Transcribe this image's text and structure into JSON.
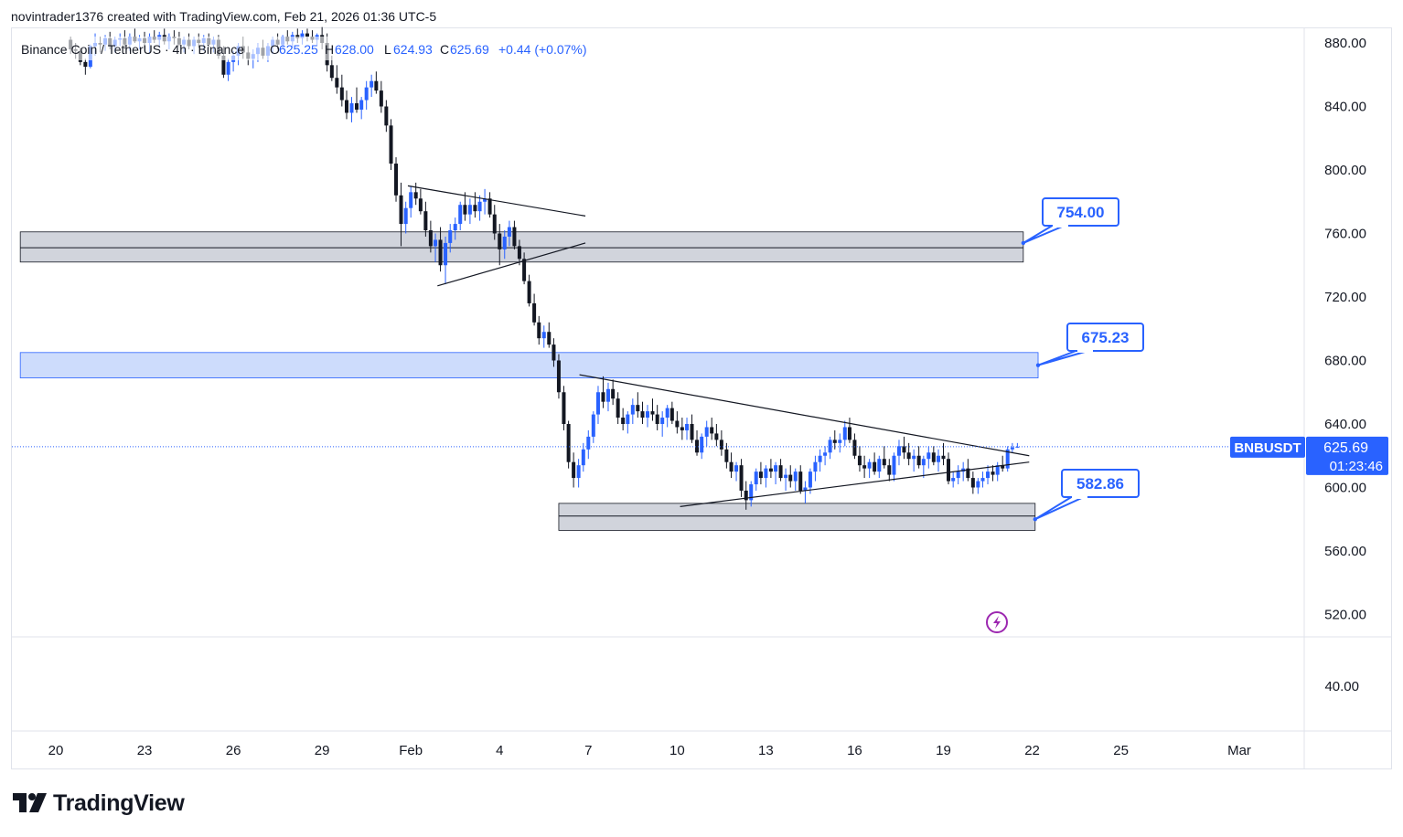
{
  "header": {
    "text": "novintrader1376 created with TradingView.com, Feb 21, 2026 01:36 UTC-5"
  },
  "legend": {
    "symbol": "Binance Coin / TetherUS · 4h · Binance",
    "o_label": "O",
    "o_value": "625.25",
    "h_label": "H",
    "h_value": "628.00",
    "l_label": "L",
    "l_value": "624.93",
    "c_label": "C",
    "c_value": "625.69",
    "change": "+0.44 (+0.07%)",
    "up_color": "#2962ff"
  },
  "footer": {
    "brand": "TradingView"
  },
  "chart_data": {
    "type": "candlestick",
    "symbol": "BNBUSDT",
    "interval": "4h",
    "price_axis": {
      "ticks": [
        "880.00",
        "840.00",
        "800.00",
        "760.00",
        "720.00",
        "680.00",
        "640.00",
        "600.00",
        "560.00",
        "520.00"
      ],
      "ylim": [
        505,
        895
      ]
    },
    "sub_axis": {
      "ticks": [
        "40.00"
      ]
    },
    "time_axis": {
      "ticks": [
        "20",
        "23",
        "26",
        "29",
        "Feb",
        "4",
        "7",
        "10",
        "13",
        "16",
        "19",
        "22",
        "25",
        "Mar"
      ],
      "tick_days": [
        0,
        3,
        6,
        9,
        12,
        15,
        18,
        21,
        24,
        27,
        30,
        33,
        36,
        40
      ]
    },
    "last_price": {
      "symbol_label": "BNBUSDT",
      "price": "625.69",
      "countdown": "01:23:46",
      "color": "#2962ff"
    },
    "zones": [
      {
        "name": "supply-zone-gray-upper",
        "top": 761,
        "bottom": 742,
        "mid": 751,
        "start_day": -1.2,
        "end_day": 32.7,
        "color": "#d1d4dc"
      },
      {
        "name": "supply-zone-blue",
        "top": 685,
        "bottom": 669,
        "start_day": -1.2,
        "end_day": 33.2,
        "color": "#cddcfc"
      },
      {
        "name": "demand-zone-gray-lower",
        "top": 590,
        "bottom": 573,
        "mid": 582,
        "start_day": 17.0,
        "end_day": 33.1,
        "color": "#d1d4dc"
      }
    ],
    "trendlines": [
      {
        "name": "flag-upper-line",
        "from": [
          11.9,
          790
        ],
        "to": [
          17.9,
          771
        ]
      },
      {
        "name": "flag-lower-line",
        "from": [
          12.9,
          727
        ],
        "to": [
          17.9,
          754
        ]
      },
      {
        "name": "triangle-upper-line",
        "from": [
          17.7,
          671
        ],
        "to": [
          32.9,
          620
        ]
      },
      {
        "name": "triangle-lower-line",
        "from": [
          21.1,
          588
        ],
        "to": [
          32.9,
          616
        ]
      }
    ],
    "callouts": [
      {
        "label": "754.00",
        "value": 754.0,
        "anchor": [
          32.7,
          754
        ]
      },
      {
        "label": "675.23",
        "value": 675.23,
        "anchor": [
          33.2,
          677
        ]
      },
      {
        "label": "582.86",
        "value": 582.86,
        "anchor": [
          33.1,
          580
        ]
      }
    ],
    "candles": [
      [
        0.5,
        882,
        884,
        873,
        876
      ],
      [
        0.67,
        876,
        880,
        870,
        875
      ],
      [
        0.83,
        875,
        877,
        866,
        868
      ],
      [
        1.0,
        868,
        870,
        860,
        865
      ],
      [
        1.17,
        865,
        879,
        864,
        878
      ],
      [
        1.33,
        878,
        886,
        872,
        880
      ],
      [
        1.5,
        880,
        884,
        874,
        879
      ],
      [
        1.67,
        879,
        885,
        875,
        883
      ],
      [
        1.83,
        883,
        887,
        876,
        878
      ],
      [
        2.0,
        878,
        884,
        874,
        882
      ],
      [
        2.17,
        882,
        886,
        878,
        883
      ],
      [
        2.33,
        883,
        888,
        876,
        879
      ],
      [
        2.5,
        879,
        886,
        875,
        884
      ],
      [
        2.67,
        884,
        889,
        880,
        881
      ],
      [
        2.83,
        881,
        885,
        876,
        883
      ],
      [
        3.0,
        883,
        887,
        877,
        880
      ],
      [
        3.17,
        880,
        886,
        874,
        884
      ],
      [
        3.33,
        884,
        888,
        880,
        882
      ],
      [
        3.5,
        882,
        887,
        877,
        885
      ],
      [
        3.67,
        885,
        889,
        879,
        881
      ],
      [
        3.83,
        881,
        886,
        876,
        884
      ],
      [
        4.0,
        884,
        888,
        879,
        883
      ],
      [
        4.17,
        883,
        887,
        878,
        879
      ],
      [
        4.33,
        879,
        884,
        874,
        882
      ],
      [
        4.5,
        882,
        886,
        876,
        878
      ],
      [
        4.67,
        878,
        884,
        873,
        882
      ],
      [
        4.83,
        882,
        886,
        877,
        880
      ],
      [
        5.0,
        880,
        885,
        875,
        883
      ],
      [
        5.17,
        883,
        886,
        877,
        879
      ],
      [
        5.33,
        879,
        884,
        874,
        882
      ],
      [
        5.5,
        882,
        885,
        870,
        872
      ],
      [
        5.67,
        872,
        878,
        858,
        860
      ],
      [
        5.83,
        860,
        870,
        856,
        868
      ],
      [
        6.0,
        868,
        875,
        862,
        872
      ],
      [
        6.17,
        872,
        880,
        866,
        878
      ],
      [
        6.33,
        878,
        884,
        870,
        874
      ],
      [
        6.5,
        874,
        878,
        866,
        870
      ],
      [
        6.67,
        870,
        876,
        864,
        873
      ],
      [
        6.83,
        873,
        880,
        868,
        877
      ],
      [
        7.0,
        877,
        882,
        870,
        872
      ],
      [
        7.17,
        872,
        880,
        868,
        878
      ],
      [
        7.33,
        878,
        884,
        873,
        882
      ],
      [
        7.5,
        882,
        886,
        876,
        879
      ],
      [
        7.67,
        879,
        885,
        876,
        884
      ],
      [
        7.83,
        884,
        888,
        879,
        881
      ],
      [
        8.0,
        881,
        887,
        877,
        885
      ],
      [
        8.17,
        885,
        889,
        880,
        883
      ],
      [
        8.33,
        883,
        888,
        879,
        886
      ],
      [
        8.5,
        886,
        889,
        881,
        884
      ],
      [
        8.67,
        884,
        888,
        880,
        882
      ],
      [
        8.83,
        882,
        886,
        878,
        885
      ],
      [
        9.0,
        885,
        890,
        876,
        880
      ],
      [
        9.17,
        880,
        886,
        862,
        866
      ],
      [
        9.33,
        866,
        872,
        856,
        858
      ],
      [
        9.5,
        858,
        866,
        848,
        852
      ],
      [
        9.67,
        852,
        860,
        840,
        844
      ],
      [
        9.83,
        844,
        850,
        832,
        836
      ],
      [
        10.0,
        836,
        846,
        830,
        842
      ],
      [
        10.17,
        842,
        852,
        836,
        838
      ],
      [
        10.33,
        838,
        846,
        832,
        844
      ],
      [
        10.5,
        844,
        856,
        838,
        852
      ],
      [
        10.67,
        852,
        860,
        846,
        856
      ],
      [
        10.83,
        856,
        862,
        848,
        850
      ],
      [
        11.0,
        850,
        856,
        836,
        840
      ],
      [
        11.17,
        840,
        844,
        824,
        828
      ],
      [
        11.33,
        828,
        832,
        800,
        804
      ],
      [
        11.5,
        804,
        808,
        780,
        784
      ],
      [
        11.67,
        784,
        792,
        752,
        766
      ],
      [
        11.83,
        766,
        780,
        760,
        776
      ],
      [
        12.0,
        776,
        790,
        770,
        786
      ],
      [
        12.17,
        786,
        792,
        778,
        782
      ],
      [
        12.33,
        782,
        788,
        772,
        774
      ],
      [
        12.5,
        774,
        780,
        758,
        762
      ],
      [
        12.67,
        762,
        768,
        748,
        752
      ],
      [
        12.83,
        752,
        760,
        742,
        756
      ],
      [
        13.0,
        756,
        764,
        736,
        740
      ],
      [
        13.17,
        740,
        758,
        728,
        754
      ],
      [
        13.33,
        754,
        766,
        748,
        762
      ],
      [
        13.5,
        762,
        770,
        756,
        766
      ],
      [
        13.67,
        766,
        780,
        762,
        778
      ],
      [
        13.83,
        778,
        786,
        768,
        772
      ],
      [
        14.0,
        772,
        782,
        766,
        778
      ],
      [
        14.17,
        778,
        786,
        770,
        774
      ],
      [
        14.33,
        774,
        784,
        768,
        780
      ],
      [
        14.5,
        780,
        788,
        772,
        782
      ],
      [
        14.67,
        782,
        786,
        770,
        772
      ],
      [
        14.83,
        772,
        778,
        756,
        760
      ],
      [
        15.0,
        760,
        766,
        740,
        750
      ],
      [
        15.17,
        750,
        762,
        744,
        758
      ],
      [
        15.33,
        758,
        768,
        752,
        764
      ],
      [
        15.5,
        764,
        768,
        750,
        752
      ],
      [
        15.67,
        752,
        756,
        740,
        744
      ],
      [
        15.83,
        744,
        748,
        728,
        730
      ],
      [
        16.0,
        730,
        734,
        714,
        716
      ],
      [
        16.17,
        716,
        722,
        702,
        704
      ],
      [
        16.33,
        704,
        708,
        690,
        694
      ],
      [
        16.5,
        694,
        702,
        688,
        698
      ],
      [
        16.67,
        698,
        704,
        688,
        690
      ],
      [
        16.83,
        690,
        694,
        676,
        680
      ],
      [
        17.0,
        680,
        684,
        656,
        660
      ],
      [
        17.17,
        660,
        664,
        636,
        640
      ],
      [
        17.33,
        640,
        642,
        612,
        616
      ],
      [
        17.5,
        616,
        622,
        600,
        606
      ],
      [
        17.67,
        606,
        618,
        600,
        614
      ],
      [
        17.83,
        614,
        628,
        610,
        624
      ],
      [
        18.0,
        624,
        636,
        618,
        632
      ],
      [
        18.17,
        632,
        648,
        628,
        646
      ],
      [
        18.33,
        646,
        664,
        640,
        660
      ],
      [
        18.5,
        660,
        670,
        650,
        654
      ],
      [
        18.67,
        654,
        666,
        648,
        662
      ],
      [
        18.83,
        662,
        668,
        652,
        656
      ],
      [
        19.0,
        656,
        660,
        640,
        644
      ],
      [
        19.17,
        644,
        650,
        636,
        640
      ],
      [
        19.33,
        640,
        648,
        634,
        646
      ],
      [
        19.5,
        646,
        656,
        640,
        652
      ],
      [
        19.67,
        652,
        660,
        644,
        648
      ],
      [
        19.83,
        648,
        654,
        640,
        644
      ],
      [
        20.0,
        644,
        652,
        638,
        648
      ],
      [
        20.17,
        648,
        656,
        642,
        646
      ],
      [
        20.33,
        646,
        652,
        636,
        640
      ],
      [
        20.5,
        640,
        648,
        632,
        644
      ],
      [
        20.67,
        644,
        652,
        638,
        650
      ],
      [
        20.83,
        650,
        654,
        640,
        642
      ],
      [
        21.0,
        642,
        648,
        634,
        638
      ],
      [
        21.17,
        638,
        644,
        630,
        636
      ],
      [
        21.33,
        636,
        644,
        630,
        640
      ],
      [
        21.5,
        640,
        646,
        628,
        630
      ],
      [
        21.67,
        630,
        636,
        620,
        622
      ],
      [
        21.83,
        622,
        634,
        618,
        632
      ],
      [
        22.0,
        632,
        642,
        626,
        638
      ],
      [
        22.17,
        638,
        644,
        630,
        634
      ],
      [
        22.33,
        634,
        640,
        626,
        630
      ],
      [
        22.5,
        630,
        636,
        620,
        624
      ],
      [
        22.67,
        624,
        628,
        612,
        616
      ],
      [
        22.83,
        616,
        622,
        606,
        610
      ],
      [
        23.0,
        610,
        616,
        604,
        614
      ],
      [
        23.17,
        614,
        618,
        594,
        598
      ],
      [
        23.33,
        598,
        604,
        586,
        592
      ],
      [
        23.5,
        592,
        604,
        588,
        602
      ],
      [
        23.67,
        602,
        612,
        598,
        610
      ],
      [
        23.83,
        610,
        616,
        602,
        606
      ],
      [
        24.0,
        606,
        614,
        600,
        612
      ],
      [
        24.17,
        612,
        618,
        606,
        610
      ],
      [
        24.33,
        610,
        616,
        602,
        614
      ],
      [
        24.5,
        614,
        618,
        604,
        606
      ],
      [
        24.67,
        606,
        612,
        598,
        608
      ],
      [
        24.83,
        608,
        614,
        600,
        604
      ],
      [
        25.0,
        604,
        612,
        598,
        610
      ],
      [
        25.17,
        610,
        614,
        596,
        598
      ],
      [
        25.33,
        598,
        604,
        590,
        600
      ],
      [
        25.5,
        600,
        612,
        596,
        610
      ],
      [
        25.67,
        610,
        620,
        604,
        616
      ],
      [
        25.83,
        616,
        624,
        610,
        620
      ],
      [
        26.0,
        620,
        626,
        614,
        622
      ],
      [
        26.17,
        622,
        632,
        618,
        630
      ],
      [
        26.33,
        630,
        636,
        624,
        628
      ],
      [
        26.5,
        628,
        634,
        622,
        630
      ],
      [
        26.67,
        630,
        642,
        626,
        638
      ],
      [
        26.83,
        638,
        644,
        628,
        630
      ],
      [
        27.0,
        630,
        634,
        618,
        620
      ],
      [
        27.17,
        620,
        626,
        610,
        614
      ],
      [
        27.33,
        614,
        620,
        606,
        612
      ],
      [
        27.5,
        612,
        618,
        606,
        616
      ],
      [
        27.67,
        616,
        622,
        608,
        610
      ],
      [
        27.83,
        610,
        620,
        606,
        618
      ],
      [
        28.0,
        618,
        626,
        612,
        614
      ],
      [
        28.17,
        614,
        618,
        604,
        608
      ],
      [
        28.33,
        608,
        622,
        604,
        620
      ],
      [
        28.5,
        620,
        630,
        614,
        626
      ],
      [
        28.67,
        626,
        632,
        618,
        622
      ],
      [
        28.83,
        622,
        628,
        614,
        618
      ],
      [
        29.0,
        618,
        624,
        610,
        620
      ],
      [
        29.17,
        620,
        626,
        612,
        614
      ],
      [
        29.33,
        614,
        620,
        606,
        618
      ],
      [
        29.5,
        618,
        626,
        612,
        622
      ],
      [
        29.67,
        622,
        626,
        614,
        616
      ],
      [
        29.83,
        616,
        624,
        610,
        620
      ],
      [
        30.0,
        620,
        628,
        614,
        618
      ],
      [
        30.17,
        618,
        622,
        602,
        604
      ],
      [
        30.33,
        604,
        610,
        600,
        606
      ],
      [
        30.5,
        606,
        614,
        602,
        610
      ],
      [
        30.67,
        610,
        616,
        604,
        612
      ],
      [
        30.83,
        612,
        618,
        604,
        606
      ],
      [
        31.0,
        606,
        610,
        596,
        600
      ],
      [
        31.17,
        600,
        606,
        596,
        604
      ],
      [
        31.33,
        604,
        610,
        600,
        606
      ],
      [
        31.5,
        606,
        614,
        602,
        610
      ],
      [
        31.67,
        610,
        614,
        604,
        608
      ],
      [
        31.83,
        608,
        616,
        604,
        614
      ],
      [
        32.0,
        614,
        620,
        610,
        612
      ],
      [
        32.17,
        612,
        626,
        610,
        624
      ],
      [
        32.33,
        624,
        628,
        622,
        625.25
      ],
      [
        32.5,
        625.25,
        628,
        624.93,
        625.69
      ]
    ]
  }
}
